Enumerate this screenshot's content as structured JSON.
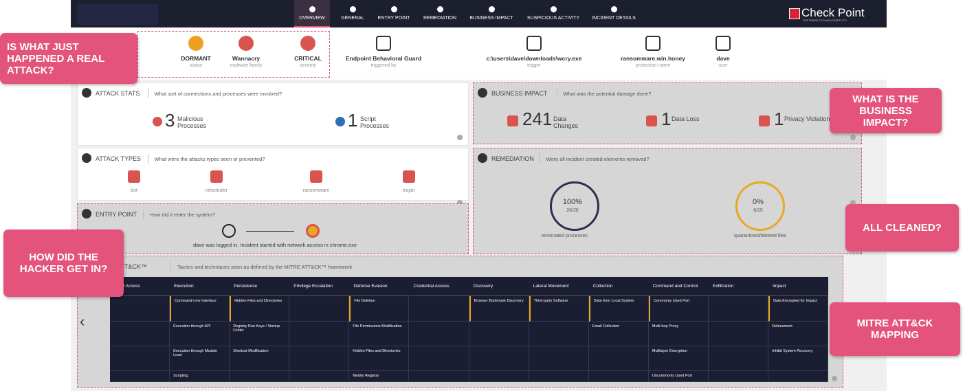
{
  "nav": {
    "items": [
      "OVERVIEW",
      "GENERAL",
      "ENTRY POINT",
      "REMEDIATION",
      "BUSINESS IMPACT",
      "SUSPICIOUS ACTIVITY",
      "INCIDENT DETAILS"
    ],
    "brand": "Check Point",
    "brand_sub": "SOFTWARE TECHNOLOGIES LTD."
  },
  "summary": [
    {
      "value": "DORMANT",
      "label": "status"
    },
    {
      "value": "Wannacry",
      "label": "malware family"
    },
    {
      "value": "CRITICAL",
      "label": "severity"
    },
    {
      "value": "Endpoint Behavioral Guard",
      "label": "triggered by"
    },
    {
      "value": "c:\\users\\dave\\downloads\\wcry.exe",
      "label": "trigger"
    },
    {
      "value": "ransomware.win.honey",
      "label": "protection name"
    },
    {
      "value": "dave",
      "label": "user"
    }
  ],
  "attack_stats": {
    "title": "ATTACK STATS",
    "question": "What sort of connections and processes were involved?",
    "stats": [
      {
        "value": 3,
        "label": "Malicious Processes"
      },
      {
        "value": 1,
        "label": "Script Processes"
      }
    ]
  },
  "business_impact": {
    "title": "BUSINESS IMPACT",
    "question": "What was the potential damage done?",
    "stats": [
      {
        "value": 241,
        "label": "Data Changes"
      },
      {
        "value": 1,
        "label": "Data Loss"
      },
      {
        "value": 1,
        "label": "Privacy Violation"
      }
    ]
  },
  "attack_types": {
    "title": "ATTACK TYPES",
    "question": "What were the attacks types seen or prevented?",
    "types": [
      "bot",
      "infostealer",
      "ransomware",
      "trojan"
    ]
  },
  "remediation": {
    "title": "REMEDIATION",
    "question": "Were all incident created elements removed?",
    "gauges": [
      {
        "percent": "100%",
        "fraction": "26/26",
        "label": "terminated processes"
      },
      {
        "percent": "0%",
        "fraction": "0/15",
        "label": "quarantined/deleted files"
      }
    ]
  },
  "entry_point": {
    "title": "ENTRY POINT",
    "question": "How did it enter the system?",
    "description": "dave was logged in. Incident started with network access in chrome.exe"
  },
  "mitre": {
    "title": "MITRE ATT&CK™",
    "subtitle": "Tactics and techniques seen as defined by the MITRE ATT&CK™ framework",
    "columns": [
      "Initial Access",
      "Execution",
      "Persistence",
      "Privilege Escalation",
      "Defense Evasion",
      "Credential Access",
      "Discovery",
      "Lateral Movement",
      "Collection",
      "Command and Control",
      "Exfiltration",
      "Impact"
    ],
    "rows": [
      [
        null,
        "Command-Line Interface",
        "Hidden Files and Directories",
        null,
        "File Deletion",
        null,
        "Browser Bookmark Discovery",
        "Third-party Software",
        "Data from Local System",
        "Commonly Used Port",
        null,
        "Data Encrypted for Impact"
      ],
      [
        null,
        "Execution through API",
        "Registry Run Keys / Startup Folder",
        null,
        "File Permissions Modification",
        null,
        null,
        null,
        "Email Collection",
        "Multi-hop Proxy",
        null,
        "Defacement"
      ],
      [
        null,
        "Execution through Module Load",
        "Shortcut Modification",
        null,
        "Hidden Files and Directories",
        null,
        null,
        null,
        null,
        "Multilayer Encryption",
        null,
        "Inhibit System Recovery"
      ],
      [
        null,
        "Scripting",
        null,
        null,
        "Modify Registry",
        null,
        null,
        null,
        null,
        "Uncommonly Used Port",
        null,
        null
      ]
    ]
  },
  "callouts": [
    "IS WHAT JUST HAPPENED A REAL ATTACK?",
    "WHAT IS THE BUSINESS IMPACT?",
    "ALL CLEANED?",
    "HOW DID THE HACKER GET IN?",
    "MITRE ATT&CK MAPPING"
  ]
}
